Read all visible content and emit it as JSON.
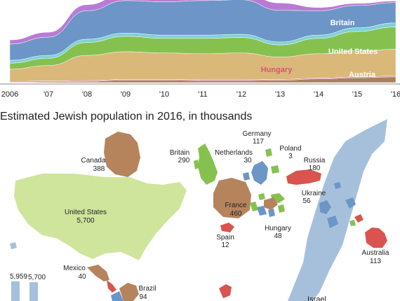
{
  "chart_data": {
    "type": "area",
    "x": [
      "2006",
      "'07",
      "'08",
      "'09",
      "'10",
      "'11",
      "'12",
      "'13",
      "'14",
      "'15",
      "'16"
    ],
    "series": [
      {
        "name": "Austria",
        "values": [
          1,
          2,
          3,
          6,
          6,
          5,
          5,
          6,
          9,
          12,
          14
        ]
      },
      {
        "name": "Hungary",
        "values": [
          2,
          2,
          2,
          2,
          2,
          2,
          2,
          2,
          2,
          2,
          2
        ]
      },
      {
        "name": "United States",
        "values": [
          30,
          38,
          62,
          68,
          65,
          64,
          66,
          55,
          60,
          64,
          66
        ]
      },
      {
        "name": "Britain",
        "values": [
          15,
          18,
          32,
          38,
          36,
          38,
          38,
          30,
          38,
          48,
          55
        ]
      },
      {
        "name": "",
        "values": [
          7,
          7,
          8,
          8,
          8,
          8,
          8,
          7,
          8,
          9,
          10
        ]
      },
      {
        "name": "",
        "values": [
          40,
          45,
          70,
          80,
          82,
          85,
          85,
          78,
          60,
          55,
          50
        ]
      },
      {
        "name": "",
        "values": [
          10,
          12,
          15,
          18,
          18,
          18,
          18,
          18,
          8,
          5,
          4
        ]
      }
    ],
    "colors": [
      "#a88060",
      "#e35a7a",
      "#d9b87a",
      "#86c150",
      "#7fd0d8",
      "#6d95c7",
      "#b87bd3"
    ],
    "labels": {
      "britain": "Britain",
      "united_states": "United States",
      "hungary": "Hungary",
      "austria": "Austria"
    }
  },
  "map": {
    "title": "Estimated Jewish population in 2016, in thousands",
    "colors": {
      "green": "#b2d87a",
      "blue": "#6d95c7",
      "brown": "#b5845d",
      "red": "#d9534f",
      "pale_blue": "#a6c0dc",
      "tan": "#d9b87a",
      "light_green": "#cfe59c"
    },
    "countries": {
      "canada": {
        "name": "Canada",
        "value": "388"
      },
      "britain": {
        "name": "Britain",
        "value": "290"
      },
      "netherlands": {
        "name": "Netherlands",
        "value": "30"
      },
      "germany": {
        "name": "Germany",
        "value": "117"
      },
      "poland": {
        "name": "Poland",
        "value": "3"
      },
      "russia": {
        "name": "Russia",
        "value": "180"
      },
      "united_states": {
        "name": "United States",
        "value": "5,700"
      },
      "france": {
        "name": "France",
        "value": "460"
      },
      "ukraine": {
        "name": "Ukraine",
        "value": "56"
      },
      "spain": {
        "name": "Spain",
        "value": "12"
      },
      "hungary": {
        "name": "Hungary",
        "value": "48"
      },
      "australia": {
        "name": "Australia",
        "value": "113"
      },
      "mexico": {
        "name": "Mexico",
        "value": "40"
      },
      "brazil": {
        "name": "Brazil",
        "value": "94"
      },
      "israel": {
        "name": "Israel",
        "value": ""
      }
    },
    "comparison_bars": [
      {
        "label": "5,959",
        "value": 5959,
        "color": "#a6c0dc"
      },
      {
        "label": "5,700",
        "value": 5700,
        "color": "#a6c0dc"
      }
    ]
  }
}
